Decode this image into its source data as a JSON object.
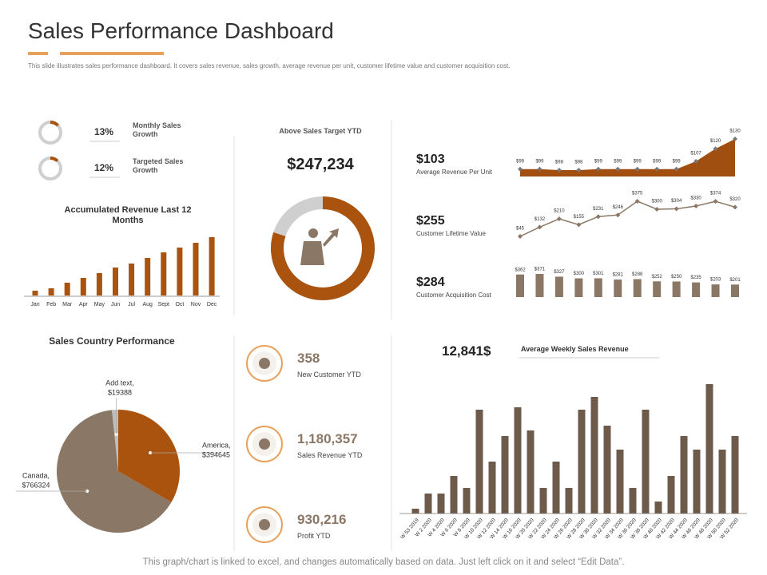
{
  "header": {
    "title": "Sales Performance Dashboard",
    "subtitle": "This slide illustrates sales performance dashboard. It covers sales revenue, sales growth, average revenue per unit, customer lifetime value and customer acquisition cost."
  },
  "growth": [
    {
      "value": 13,
      "label": "13%",
      "name": "Monthly Sales Growth"
    },
    {
      "value": 12,
      "label": "12%",
      "name": "Targeted Sales Growth"
    }
  ],
  "accumulated": {
    "type": "bar",
    "title": "Accumulated Revenue Last 12 Months",
    "color": "#a9530f",
    "categories": [
      "Jan",
      "Feb",
      "Mar",
      "Apr",
      "May",
      "Jun",
      "Jul",
      "Aug",
      "Sept",
      "Oct",
      "Nov",
      "Dec"
    ],
    "values": [
      6,
      9,
      16,
      22,
      28,
      35,
      40,
      47,
      54,
      60,
      66,
      73
    ]
  },
  "target": {
    "title": "Above Sales Target YTD",
    "amount": "$247,234",
    "share": 80
  },
  "metrics": [
    {
      "type": "area",
      "value": "$103",
      "name": "Average Revenue Per Unit",
      "color": "#a04f10",
      "values": [
        99,
        99,
        98,
        98,
        99,
        99,
        99,
        99,
        99,
        107,
        120,
        130
      ],
      "value_labels": [
        "$99",
        "$99",
        "$98",
        "$98",
        "$99",
        "$99",
        "$99",
        "$99",
        "$99",
        "$107",
        "$120",
        "$130"
      ]
    },
    {
      "type": "line",
      "value": "$255",
      "name": "Customer Lifetime Value",
      "color": "#8b7765",
      "values": [
        45,
        132,
        210,
        155,
        231,
        246,
        375,
        300,
        304,
        330,
        374,
        320
      ],
      "value_labels": [
        "$45",
        "$132",
        "$210",
        "$155",
        "$231",
        "$246",
        "$375",
        "$300",
        "$304",
        "$330",
        "$374",
        "$320"
      ]
    },
    {
      "type": "bar",
      "value": "$284",
      "name": "Customer Acquisition Cost",
      "color": "#8b7765",
      "values": [
        362,
        371,
        327,
        300,
        301,
        281,
        288,
        252,
        250,
        235,
        203,
        201
      ],
      "value_labels": [
        "$362",
        "$371",
        "$327",
        "$300",
        "$301",
        "$281",
        "$288",
        "$252",
        "$250",
        "$235",
        "$203",
        "$201"
      ]
    }
  ],
  "country": {
    "type": "pie",
    "title": "Sales Country Performance",
    "slices": [
      {
        "name": "America,",
        "value": 394645,
        "value_label": "$394645",
        "color": "#a9530f"
      },
      {
        "name": "Canada,",
        "value": 766324,
        "value_label": "$766324",
        "color": "#8b7765"
      },
      {
        "name": "Add text,",
        "value": 19388,
        "value_label": "$19388",
        "color": "#bdbdbd"
      }
    ]
  },
  "kpis": [
    {
      "value": "358",
      "label": "New Customer YTD"
    },
    {
      "value": "1,180,357",
      "label": "Sales Revenue YTD"
    },
    {
      "value": "930,216",
      "label": "Profit YTD"
    }
  ],
  "weekly": {
    "type": "bar",
    "amount": "12,841$",
    "title": "Average Weekly Sales Revenue",
    "color": "#6e5a4b",
    "categories": [
      "W 53 2019",
      "W 2 2020",
      "W 4 2020",
      "W 6 2020",
      "W 8 2020",
      "W 10 2020",
      "W 12 2020",
      "W 14 2020",
      "W 16 2020",
      "W 20 2020",
      "W 22 2020",
      "W 24 2020",
      "W 26 2020",
      "W 28 2020",
      "W 30 2020",
      "W 32 2020",
      "W 34 2020",
      "W 36 2020",
      "W 38 2020",
      "W 40 2020",
      "W 42 2020",
      "W 44 2020",
      "W 46 2020",
      "W 48 2020",
      "W 50 2020",
      "W 52 2020"
    ],
    "values": [
      6,
      25,
      25,
      47,
      32,
      130,
      65,
      97,
      133,
      104,
      32,
      65,
      32,
      130,
      146,
      110,
      80,
      32,
      130,
      15,
      47,
      97,
      80,
      162,
      80,
      97
    ]
  },
  "footer": "This graph/chart is linked to excel, and changes automatically based on data. Just left click on it and select “Edit Data”."
}
